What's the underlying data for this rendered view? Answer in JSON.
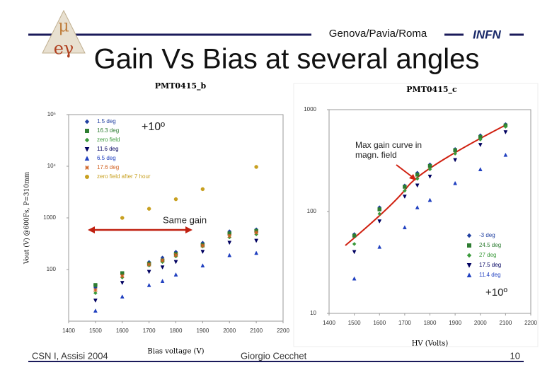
{
  "slide": {
    "header": "Genova/Pavia/Roma",
    "title": "Gain Vs Bias at several angles",
    "logo_left_top": "μ",
    "logo_left_bottom": "eγ",
    "logo_right": "INFN",
    "footer_left": "CSN I, Assisi 2004",
    "footer_center": "Giorgio Cecchet",
    "page": "10"
  },
  "chart_data": [
    {
      "type": "scatter",
      "title": "PMT0415_b",
      "xlabel": "Bias voltage (V)",
      "ylabel": "Vout (V) @600Fs, P=310mm",
      "x": [
        1500,
        1600,
        1700,
        1750,
        1800,
        1900,
        2000,
        2100
      ],
      "series": [
        {
          "name": "1.5 deg",
          "color": "#1f3fa0",
          "marker": "diamond",
          "values": [
            45,
            80,
            140,
            170,
            220,
            330,
            550,
            600
          ]
        },
        {
          "name": "16.3 deg",
          "color": "#2e7d32",
          "marker": "square",
          "values": [
            50,
            85,
            130,
            150,
            200,
            300,
            500,
            560
          ]
        },
        {
          "name": "zero field",
          "color": "#3a9a3a",
          "marker": "diamond",
          "values": [
            35,
            70,
            120,
            140,
            180,
            280,
            420,
            480
          ]
        },
        {
          "name": "11.6 deg",
          "color": "#000060",
          "marker": "triangle-down",
          "values": [
            25,
            55,
            90,
            110,
            140,
            220,
            330,
            360
          ]
        },
        {
          "name": "6.5 deg",
          "color": "#2040c0",
          "marker": "triangle-up",
          "values": [
            16,
            30,
            50,
            60,
            80,
            120,
            190,
            210
          ]
        },
        {
          "name": "17.6 deg",
          "color": "#d06020",
          "marker": "star",
          "values": [
            40,
            75,
            125,
            150,
            190,
            290,
            450,
            520
          ]
        },
        {
          "name": "zero field after 7 hour",
          "color": "#c8a020",
          "marker": "circle",
          "values": [
            null,
            1000,
            1500,
            null,
            2300,
            3600,
            null,
            9700
          ]
        }
      ],
      "xlim": [
        1400,
        2200
      ],
      "ylim": [
        10,
        100000
      ],
      "log_y": true,
      "legend": "top-left",
      "xticks": [
        1400,
        1500,
        1600,
        1700,
        1800,
        1900,
        2000,
        2100,
        2200
      ],
      "yticks": [
        100,
        1000,
        {
          "value": 10000,
          "label": "10⁴"
        },
        {
          "value": 100000,
          "label": "10⁵"
        }
      ],
      "annotations": [
        "+10º",
        "Same gain"
      ]
    },
    {
      "type": "scatter",
      "title": "PMT0415_c",
      "xlabel": "HV (Volts)",
      "x": [
        1500,
        1600,
        1700,
        1750,
        1800,
        1900,
        2000,
        2100
      ],
      "series": [
        {
          "name": "-3 deg",
          "color": "#1f3fa0",
          "marker": "diamond",
          "values": [
            60,
            110,
            180,
            240,
            290,
            410,
            560,
            720
          ]
        },
        {
          "name": "24.5 deg",
          "color": "#2e7d32",
          "marker": "square",
          "values": [
            58,
            105,
            175,
            230,
            280,
            400,
            540,
            700
          ]
        },
        {
          "name": "27 deg",
          "color": "#3a9a3a",
          "marker": "diamond",
          "values": [
            48,
            95,
            160,
            210,
            260,
            370,
            510,
            680
          ]
        },
        {
          "name": "17.5 deg",
          "color": "#000060",
          "marker": "triangle-down",
          "values": [
            40,
            80,
            140,
            180,
            220,
            320,
            450,
            600
          ]
        },
        {
          "name": "11.4 deg",
          "color": "#2040c0",
          "marker": "triangle-up",
          "values": [
            22,
            45,
            70,
            110,
            130,
            190,
            260,
            360
          ]
        }
      ],
      "xlim": [
        1400,
        2200
      ],
      "ylim": [
        10,
        1000
      ],
      "log_y": true,
      "legend": "bottom-right",
      "xticks": [
        1400,
        1500,
        1600,
        1700,
        1800,
        1900,
        2000,
        2100,
        2200
      ],
      "yticks": [
        10,
        100,
        1000
      ],
      "annotations": [
        "Max gain curve in magn. field",
        "+10º"
      ]
    }
  ]
}
